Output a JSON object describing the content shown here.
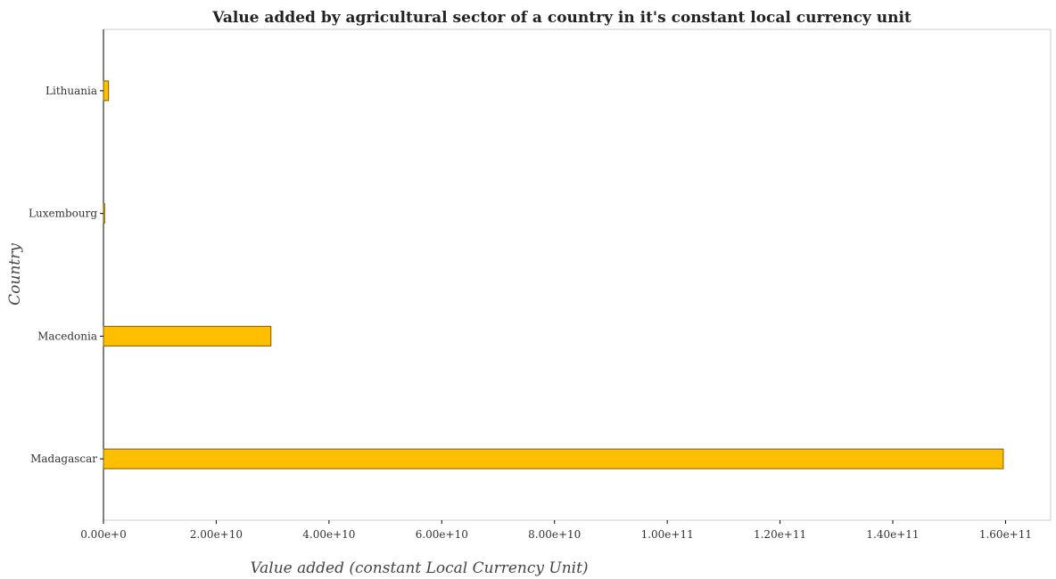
{
  "chart_data": {
    "type": "bar",
    "orientation": "horizontal",
    "title": "Value added by agricultural sector of a country in it's constant local currency unit",
    "xlabel": "Value added (constant Local Currency Unit)",
    "ylabel": "Country",
    "categories": [
      "Lithuania",
      "Luxembourg",
      "Macedonia",
      "Madagascar"
    ],
    "values": [
      900000000,
      200000000,
      29700000000,
      159600000000
    ],
    "xlim": [
      0,
      168000000000
    ],
    "xticks": [
      0,
      20000000000,
      40000000000,
      60000000000,
      80000000000,
      100000000000,
      120000000000,
      140000000000,
      160000000000
    ],
    "xtick_labels": [
      "0.00e+0",
      "2.00e+10",
      "4.00e+10",
      "6.00e+10",
      "8.00e+10",
      "1.00e+11",
      "1.20e+11",
      "1.40e+11",
      "1.60e+11"
    ],
    "bar_color": "#ffbf00",
    "grid": false,
    "legend": "none"
  }
}
